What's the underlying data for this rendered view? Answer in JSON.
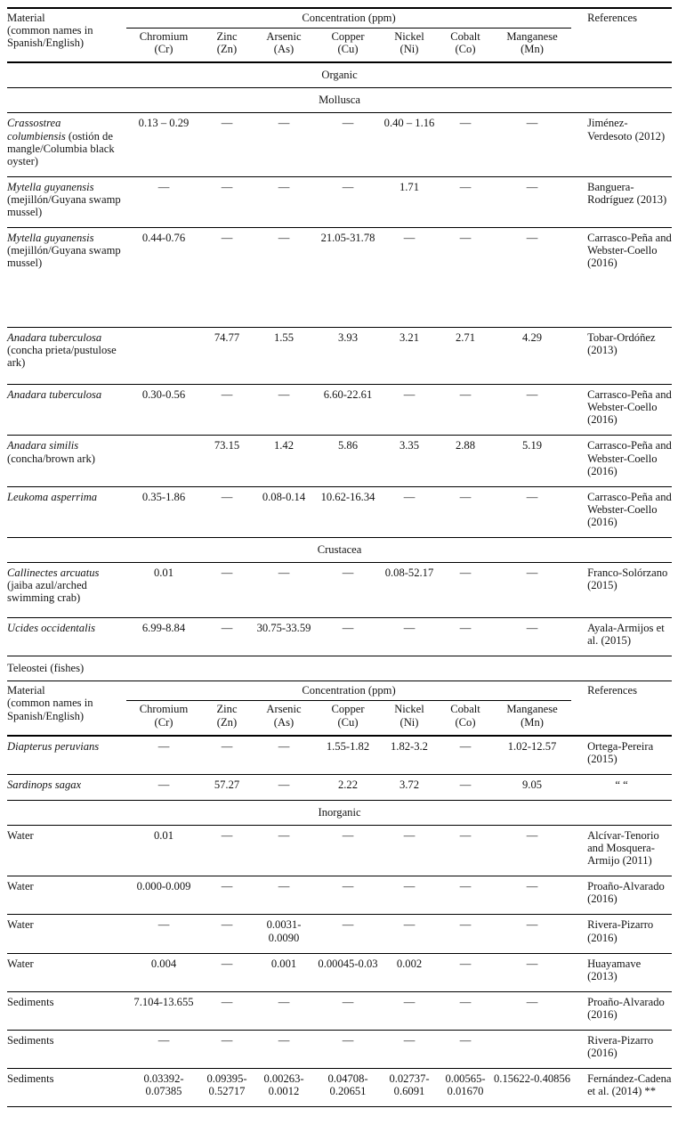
{
  "page": {
    "background": "#ffffff",
    "text_color": "#141414",
    "rule_color": "#000000",
    "empty_mark": "—"
  },
  "table": {
    "header": {
      "material_lines": [
        "Material",
        "(common names in",
        "Spanish/English)"
      ],
      "concentration_label": "Concentration (ppm)",
      "references_label": "References",
      "metals": [
        {
          "name": "Chromium",
          "symbol": "(Cr)"
        },
        {
          "name": "Zinc",
          "symbol": "(Zn)"
        },
        {
          "name": "Arsenic",
          "symbol": "(As)"
        },
        {
          "name": "Copper",
          "symbol": "(Cu)"
        },
        {
          "name": "Nickel",
          "symbol": "(Ni)"
        },
        {
          "name": "Cobalt",
          "symbol": "(Co)"
        },
        {
          "name": "Manganese",
          "symbol": "(Mn)"
        }
      ]
    },
    "body": [
      {
        "kind": "header"
      },
      {
        "kind": "section",
        "label": "Organic",
        "align": "center"
      },
      {
        "kind": "section",
        "label": "Mollusca",
        "align": "center"
      },
      {
        "kind": "row",
        "species": "Crassostrea columbiensis",
        "common": "(ostión de mangle/Columbia black oyster)",
        "values": [
          "0.13 – 0.29",
          "—",
          "—",
          "—",
          "0.40 – 1.16",
          "—",
          "—"
        ],
        "reference": "Jiménez-Verdesoto (2012)",
        "minh": 66
      },
      {
        "kind": "row",
        "species": "Mytella guyanensis",
        "common": "(mejillón/Guyana swamp mussel)",
        "values": [
          "—",
          "—",
          "—",
          "—",
          "1.71",
          "—",
          "—"
        ],
        "reference": "Banguera-Rodríguez (2013)"
      },
      {
        "kind": "row",
        "species": "Mytella guyanensis",
        "common": "(mejillón/Guyana swamp mussel)",
        "values": [
          "0.44-0.76",
          "—",
          "—",
          "21.05-31.78",
          "—",
          "—",
          "—"
        ],
        "reference": "Carrasco-Peña and Webster-Coello (2016)",
        "minh": 112
      },
      {
        "kind": "row",
        "species": "Anadara tuberculosa",
        "common": "(concha prieta/pustulose ark)",
        "values": [
          "",
          "74.77",
          "1.55",
          "3.93",
          "3.21",
          "2.71",
          "4.29"
        ],
        "reference": "Tobar-Ordóñez (2013)",
        "minh": 64
      },
      {
        "kind": "row",
        "species": "Anadara tuberculosa",
        "common": "",
        "values": [
          "0.30-0.56",
          "—",
          "—",
          "6.60-22.61",
          "—",
          "—",
          "—"
        ],
        "reference": "Carrasco-Peña and Webster-Coello (2016)"
      },
      {
        "kind": "row",
        "species": "Anadara similis",
        "common": "(concha/brown ark)",
        "values": [
          "",
          "73.15",
          "1.42",
          "5.86",
          "3.35",
          "2.88",
          "5.19"
        ],
        "reference": "Carrasco-Peña and Webster-Coello (2016)"
      },
      {
        "kind": "row",
        "species": "Leukoma asperrima",
        "common": "",
        "values": [
          "0.35-1.86",
          "—",
          "0.08-0.14",
          "10.62-16.34",
          "—",
          "—",
          "—"
        ],
        "reference": "Carrasco-Peña and Webster-Coello (2016)"
      },
      {
        "kind": "section",
        "label": "Crustacea",
        "align": "center"
      },
      {
        "kind": "row",
        "species": "Callinectes arcuatus",
        "common": "(jaiba azul/arched swimming crab)",
        "values": [
          "0.01",
          "—",
          "—",
          "—",
          "0.08-52.17",
          "—",
          "—"
        ],
        "reference": "Franco-Solórzano (2015)",
        "minh": 62
      },
      {
        "kind": "row",
        "species": "Ucides occidentalis",
        "common": "",
        "values": [
          "6.99-8.84",
          "—",
          "30.75-33.59",
          "—",
          "—",
          "—",
          "—"
        ],
        "reference": "Ayala-Armijos et al. (2015)"
      },
      {
        "kind": "section",
        "label": "Teleostei (fishes)",
        "align": "left"
      },
      {
        "kind": "header"
      },
      {
        "kind": "row",
        "species": "Diapterus peruvians",
        "common": "",
        "values": [
          "—",
          "—",
          "—",
          "1.55-1.82",
          "1.82-3.2",
          "—",
          "1.02-12.57"
        ],
        "reference": "Ortega-Pereira (2015)"
      },
      {
        "kind": "row",
        "species": "Sardinops sagax",
        "common": "",
        "values": [
          "—",
          "57.27",
          "—",
          "2.22",
          "3.72",
          "—",
          "9.05"
        ],
        "reference": "“ “",
        "ref_center": true
      },
      {
        "kind": "section",
        "label": "Inorganic",
        "align": "center"
      },
      {
        "kind": "row",
        "species": "",
        "common": "Water",
        "values": [
          "0.01",
          "—",
          "—",
          "—",
          "—",
          "—",
          "—"
        ],
        "reference": "Alcívar-Tenorio and Mosquera-Armijo (2011)"
      },
      {
        "kind": "row",
        "species": "",
        "common": "Water",
        "values": [
          "0.000-0.009",
          "—",
          "—",
          "—",
          "—",
          "—",
          "—"
        ],
        "reference": "Proaño-Alvarado (2016)"
      },
      {
        "kind": "row",
        "species": "",
        "common": "Water",
        "values": [
          "—",
          "—",
          "0.0031-0.0090",
          "—",
          "—",
          "—",
          "—"
        ],
        "reference": "Rivera-Pizarro (2016)"
      },
      {
        "kind": "row",
        "species": "",
        "common": "Water",
        "values": [
          "0.004",
          "—",
          "0.001",
          "0.00045-0.03",
          "0.002",
          "—",
          "—"
        ],
        "reference": "Huayamave (2013)"
      },
      {
        "kind": "row",
        "species": "",
        "common": "Sediments",
        "values": [
          "7.104-13.655",
          "—",
          "—",
          "—",
          "—",
          "—",
          "—"
        ],
        "reference": "Proaño-Alvarado (2016)"
      },
      {
        "kind": "row",
        "species": "",
        "common": "Sediments",
        "values": [
          "—",
          "—",
          "—",
          "—",
          "—",
          "—",
          ""
        ],
        "reference": "Rivera-Pizarro (2016)"
      },
      {
        "kind": "row",
        "species": "",
        "common": "Sediments",
        "values": [
          "0.03392-0.07385",
          "0.09395-0.52717",
          "0.00263-0.0012",
          "0.04708-0.20651",
          "0.02737-0.6091",
          "0.00565-0.01670",
          "0.15622-0.40856"
        ],
        "reference": "Fernández-Cadena et al. (2014) **"
      }
    ]
  }
}
